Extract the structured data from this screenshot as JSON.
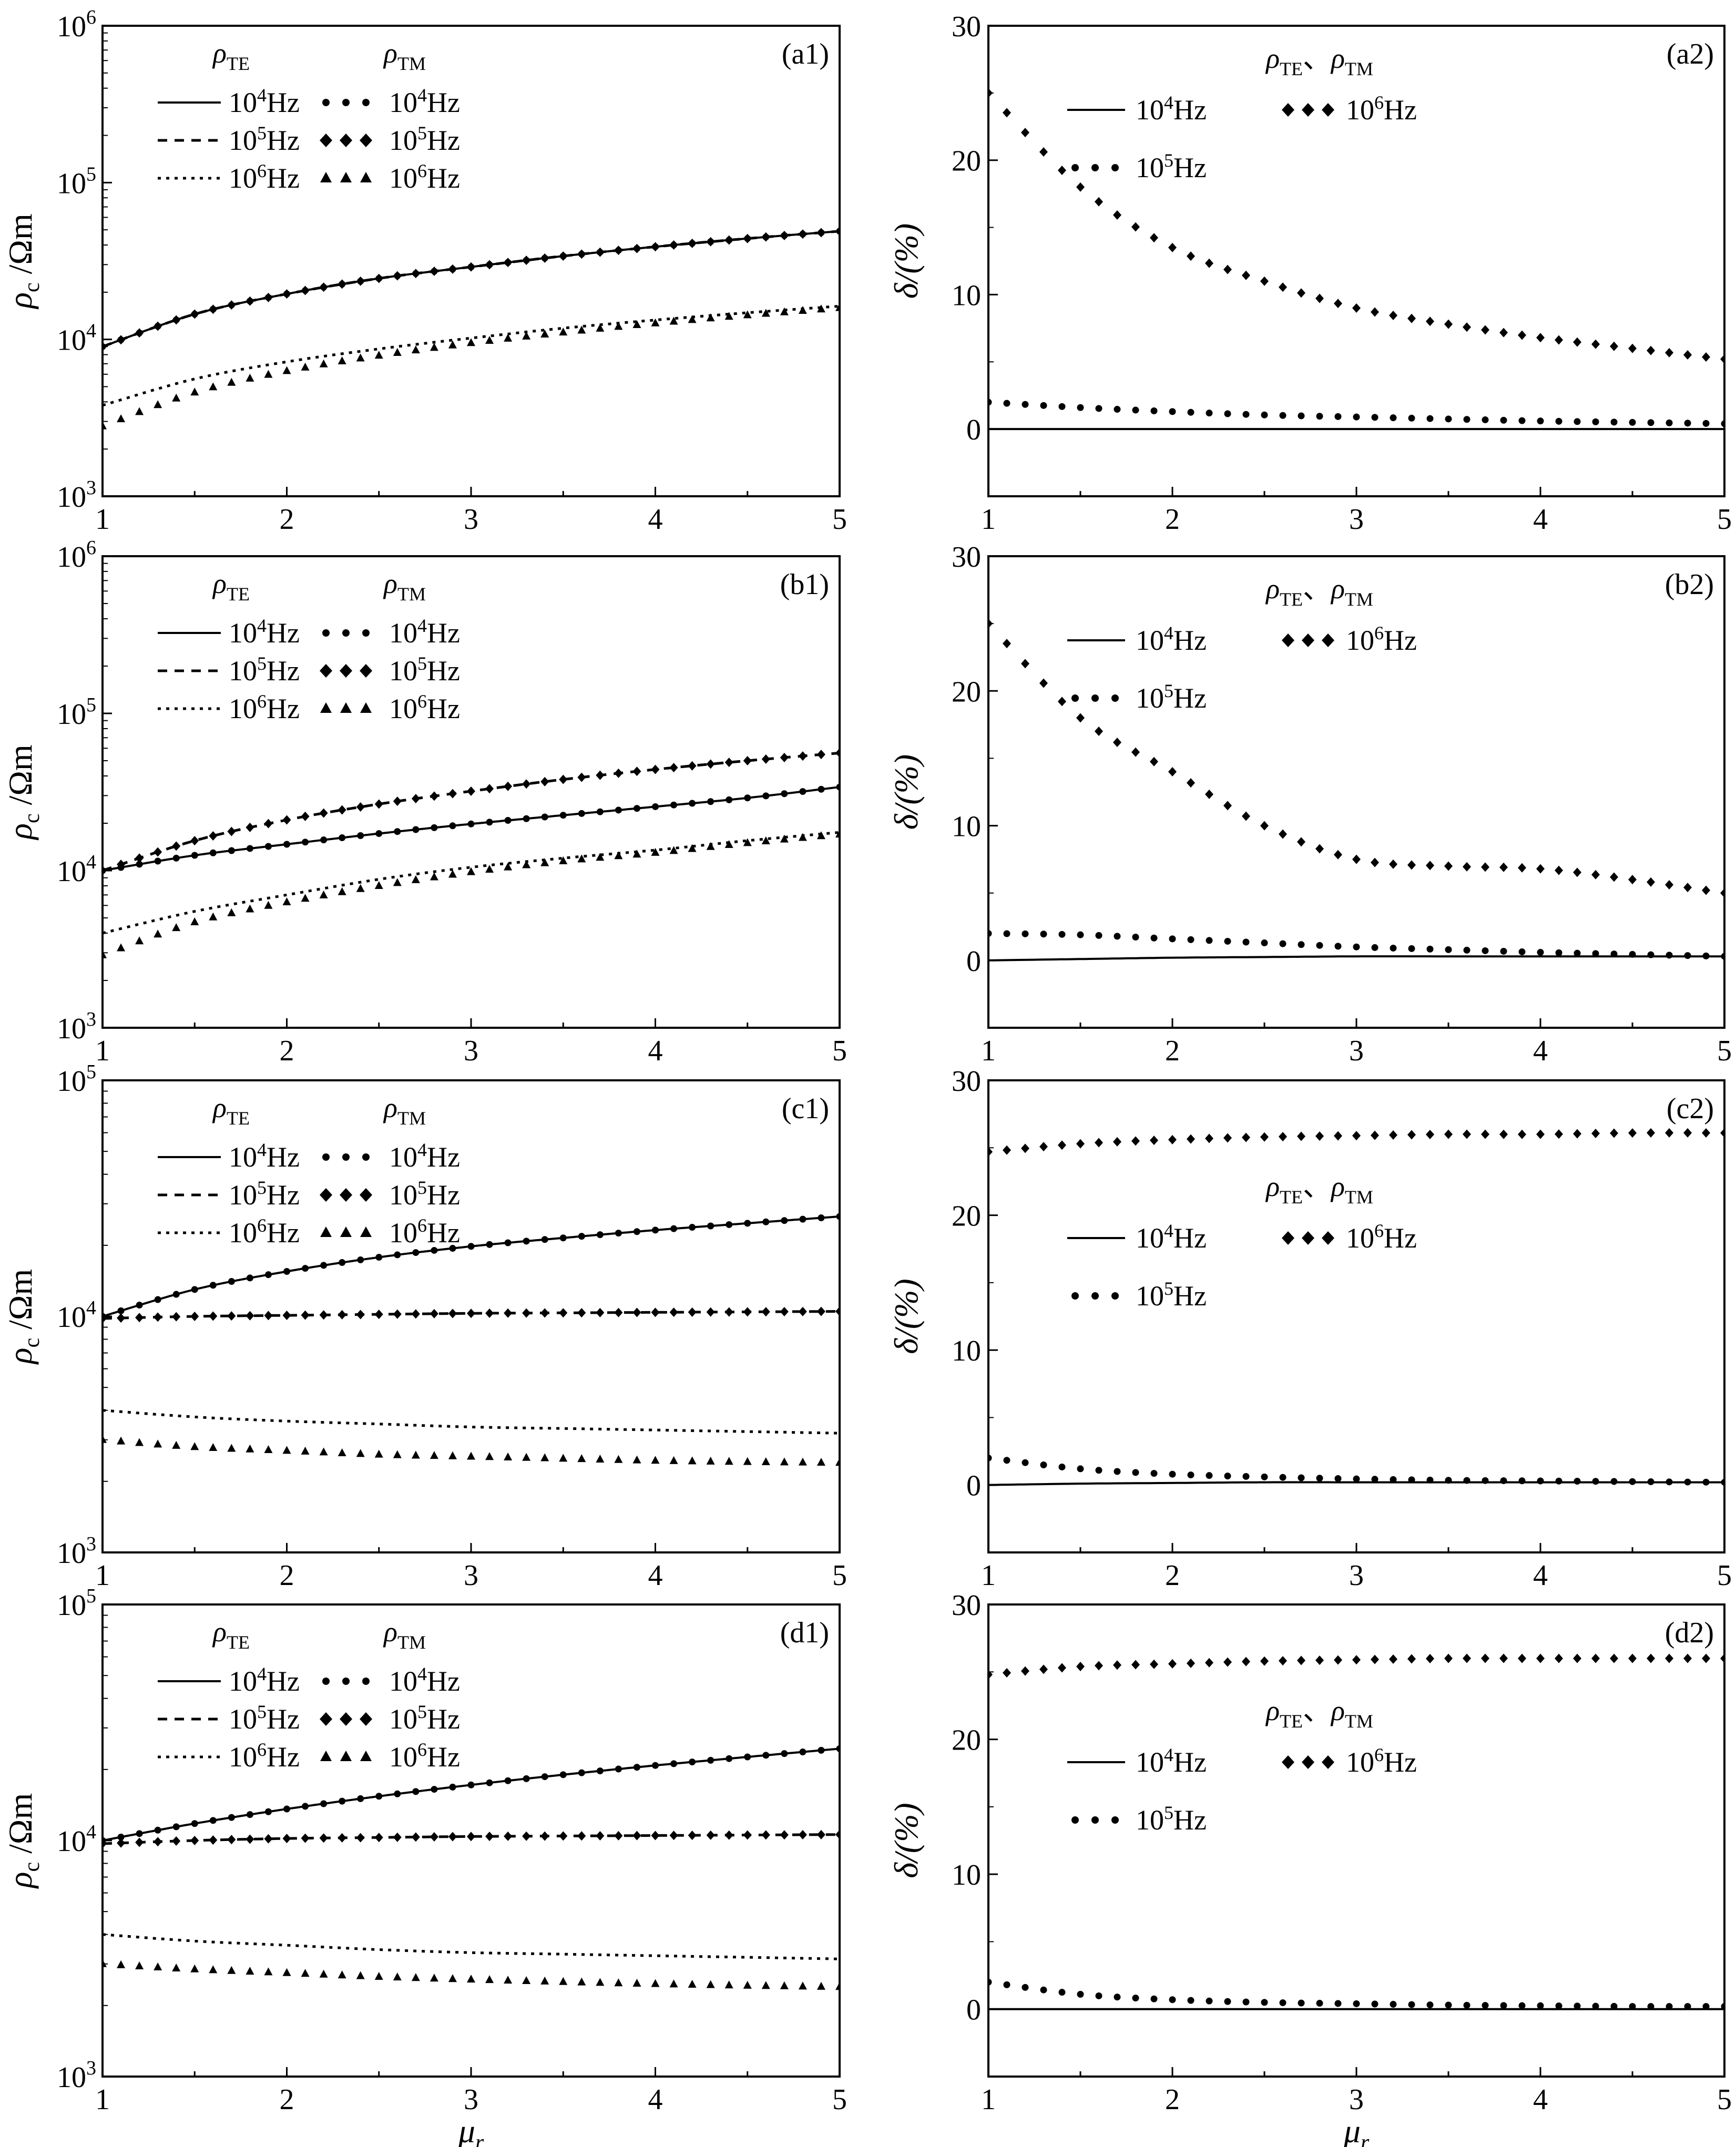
{
  "figure": {
    "x_axis_label": "μ",
    "x_axis_label_sub": "r",
    "left_y_label": "ρ",
    "left_y_label_sub": "c",
    "left_y_label_unit": " /Ωm",
    "right_y_label": "δ/(%)",
    "legend_head_te": "ρ",
    "legend_head_te_sub": "TE",
    "legend_head_tm": "ρ",
    "legend_head_tm_sub": "TM",
    "legend_head_combined_sep": "、",
    "freq_labels": [
      "10⁴Hz",
      "10⁵Hz",
      "10⁶Hz"
    ]
  },
  "chart_data": [
    {
      "id": "a1",
      "panel_label": "(a1)",
      "type": "line",
      "y_scale": "log",
      "xlim": [
        1,
        5
      ],
      "ylim": [
        1000,
        1000000
      ],
      "xticks": [
        "1",
        "2",
        "3",
        "4",
        "5"
      ],
      "yticks": [
        {
          "base": "10",
          "exp": "3"
        },
        {
          "base": "10",
          "exp": "4"
        },
        {
          "base": "10",
          "exp": "5"
        },
        {
          "base": "10",
          "exp": "6"
        }
      ],
      "x": [
        1,
        1.5,
        2,
        2.5,
        3,
        3.5,
        4,
        4.5,
        5
      ],
      "series": [
        {
          "group": "TE",
          "freq": "10⁴Hz",
          "values": [
            9000,
            14500,
            19500,
            24500,
            29000,
            34000,
            39000,
            44000,
            49000
          ]
        },
        {
          "group": "TE",
          "freq": "10⁵Hz",
          "values": [
            9000,
            14500,
            19500,
            24500,
            29000,
            34000,
            39000,
            44000,
            49000
          ]
        },
        {
          "group": "TE",
          "freq": "10⁶Hz",
          "values": [
            3800,
            5600,
            7200,
            8700,
            10200,
            11800,
            13300,
            14800,
            16300
          ]
        },
        {
          "group": "TM",
          "freq": "10⁴Hz",
          "values": [
            9000,
            14500,
            19500,
            24500,
            29000,
            34000,
            39000,
            44000,
            49000
          ]
        },
        {
          "group": "TM",
          "freq": "10⁵Hz",
          "values": [
            9000,
            14500,
            19500,
            24500,
            29000,
            34000,
            39000,
            44000,
            49000
          ]
        },
        {
          "group": "TM",
          "freq": "10⁶Hz",
          "values": [
            2800,
            4600,
            6300,
            7900,
            9500,
            11100,
            12700,
            14300,
            15900
          ]
        }
      ]
    },
    {
      "id": "a2",
      "panel_label": "(a2)",
      "type": "line",
      "y_scale": "linear",
      "xlim": [
        1,
        5
      ],
      "ylim": [
        -5,
        30
      ],
      "xticks": [
        "1",
        "2",
        "3",
        "4",
        "5"
      ],
      "yticks": [
        "0",
        "10",
        "20",
        "30"
      ],
      "x": [
        1,
        1.5,
        2,
        2.5,
        3,
        3.5,
        4,
        4.5,
        5
      ],
      "series": [
        {
          "freq": "10⁴Hz",
          "values": [
            0,
            0,
            0,
            0,
            0,
            0,
            0,
            0,
            0
          ]
        },
        {
          "freq": "10⁵Hz",
          "values": [
            2,
            1.6,
            1.3,
            1.05,
            0.9,
            0.75,
            0.6,
            0.5,
            0.4
          ]
        },
        {
          "freq": "10⁶Hz",
          "values": [
            25,
            18,
            13.5,
            11,
            9,
            7.8,
            6.8,
            6,
            5.2
          ]
        }
      ]
    },
    {
      "id": "b1",
      "panel_label": "(b1)",
      "type": "line",
      "y_scale": "log",
      "xlim": [
        1,
        5
      ],
      "ylim": [
        1000,
        1000000
      ],
      "xticks": [
        "1",
        "2",
        "3",
        "4",
        "5"
      ],
      "yticks": [
        {
          "base": "10",
          "exp": "3"
        },
        {
          "base": "10",
          "exp": "4"
        },
        {
          "base": "10",
          "exp": "5"
        },
        {
          "base": "10",
          "exp": "6"
        }
      ],
      "x": [
        1,
        1.5,
        2,
        2.5,
        3,
        3.5,
        4,
        4.5,
        5
      ],
      "series": [
        {
          "group": "TE",
          "freq": "10⁴Hz",
          "values": [
            10000,
            12500,
            14700,
            17200,
            19800,
            22500,
            25500,
            29000,
            34000
          ]
        },
        {
          "group": "TE",
          "freq": "10⁵Hz",
          "values": [
            10000,
            15500,
            21000,
            26500,
            32000,
            38000,
            44000,
            50000,
            56000
          ]
        },
        {
          "group": "TE",
          "freq": "10⁶Hz",
          "values": [
            4000,
            5500,
            7000,
            8800,
            10500,
            12000,
            13500,
            15500,
            17500
          ]
        },
        {
          "group": "TM",
          "freq": "10⁴Hz",
          "values": [
            10000,
            12500,
            14700,
            17200,
            19800,
            22500,
            25500,
            29000,
            34000
          ]
        },
        {
          "group": "TM",
          "freq": "10⁵Hz",
          "values": [
            10000,
            15500,
            21000,
            26500,
            32000,
            38000,
            44000,
            50000,
            56000
          ]
        },
        {
          "group": "TM",
          "freq": "10⁶Hz",
          "values": [
            2900,
            4700,
            6300,
            8000,
            9800,
            11500,
            13000,
            15000,
            17000
          ]
        }
      ]
    },
    {
      "id": "b2",
      "panel_label": "(b2)",
      "type": "line",
      "y_scale": "linear",
      "xlim": [
        1,
        5
      ],
      "ylim": [
        -5,
        30
      ],
      "xticks": [
        "1",
        "2",
        "3",
        "4",
        "5"
      ],
      "yticks": [
        "0",
        "10",
        "20",
        "30"
      ],
      "x": [
        1,
        1.5,
        2,
        2.5,
        3,
        3.5,
        4,
        4.5,
        5
      ],
      "series": [
        {
          "freq": "10⁴Hz",
          "values": [
            0,
            0.1,
            0.2,
            0.25,
            0.3,
            0.3,
            0.3,
            0.3,
            0.3
          ]
        },
        {
          "freq": "10⁵Hz",
          "values": [
            2,
            1.9,
            1.6,
            1.3,
            1.0,
            0.8,
            0.6,
            0.45,
            0.3
          ]
        },
        {
          "freq": "10⁶Hz",
          "values": [
            25,
            18,
            14,
            10,
            7.5,
            7,
            6.8,
            6,
            5
          ]
        }
      ]
    },
    {
      "id": "c1",
      "panel_label": "(c1)",
      "type": "line",
      "y_scale": "log",
      "xlim": [
        1,
        5
      ],
      "ylim": [
        1000,
        100000
      ],
      "xticks": [
        "1",
        "2",
        "3",
        "4",
        "5"
      ],
      "yticks": [
        {
          "base": "10",
          "exp": "3"
        },
        {
          "base": "10",
          "exp": "4"
        },
        {
          "base": "10",
          "exp": "5"
        }
      ],
      "x": [
        1,
        1.5,
        2,
        2.5,
        3,
        3.5,
        4,
        4.5,
        5
      ],
      "series": [
        {
          "group": "TE",
          "freq": "10⁴Hz",
          "values": [
            10000,
            13000,
            15500,
            17800,
            19800,
            21500,
            23200,
            24800,
            26500
          ]
        },
        {
          "group": "TE",
          "freq": "10⁵Hz",
          "values": [
            9800,
            10000,
            10100,
            10200,
            10300,
            10350,
            10400,
            10450,
            10500
          ]
        },
        {
          "group": "TE",
          "freq": "10⁶Hz",
          "values": [
            4000,
            3750,
            3600,
            3500,
            3400,
            3350,
            3300,
            3250,
            3200
          ]
        },
        {
          "group": "TM",
          "freq": "10⁴Hz",
          "values": [
            10000,
            13000,
            15500,
            17800,
            19800,
            21500,
            23200,
            24800,
            26500
          ]
        },
        {
          "group": "TM",
          "freq": "10⁵Hz",
          "values": [
            9800,
            10000,
            10100,
            10200,
            10300,
            10350,
            10400,
            10450,
            10500
          ]
        },
        {
          "group": "TM",
          "freq": "10⁶Hz",
          "values": [
            3000,
            2800,
            2700,
            2600,
            2550,
            2500,
            2450,
            2420,
            2400
          ]
        }
      ]
    },
    {
      "id": "c2",
      "panel_label": "(c2)",
      "type": "line",
      "y_scale": "linear",
      "xlim": [
        1,
        5
      ],
      "ylim": [
        -5,
        30
      ],
      "xticks": [
        "1",
        "2",
        "3",
        "4",
        "5"
      ],
      "yticks": [
        "0",
        "10",
        "20",
        "30"
      ],
      "x": [
        1,
        1.5,
        2,
        2.5,
        3,
        3.5,
        4,
        4.5,
        5
      ],
      "series": [
        {
          "freq": "10⁴Hz",
          "values": [
            0,
            0.1,
            0.15,
            0.2,
            0.2,
            0.2,
            0.2,
            0.2,
            0.2
          ]
        },
        {
          "freq": "10⁵Hz",
          "values": [
            2,
            1.2,
            0.8,
            0.6,
            0.45,
            0.35,
            0.3,
            0.25,
            0.2
          ]
        },
        {
          "freq": "10⁶Hz",
          "values": [
            24.7,
            25.3,
            25.6,
            25.8,
            25.9,
            26.0,
            26.0,
            26.1,
            26.1
          ]
        }
      ]
    },
    {
      "id": "d1",
      "panel_label": "(d1)",
      "type": "line",
      "y_scale": "log",
      "xlim": [
        1,
        5
      ],
      "ylim": [
        1000,
        100000
      ],
      "xticks": [
        "1",
        "2",
        "3",
        "4",
        "5"
      ],
      "yticks": [
        {
          "base": "10",
          "exp": "3"
        },
        {
          "base": "10",
          "exp": "4"
        },
        {
          "base": "10",
          "exp": "5"
        }
      ],
      "x": [
        1,
        1.5,
        2,
        2.5,
        3,
        3.5,
        4,
        4.5,
        5
      ],
      "series": [
        {
          "group": "TE",
          "freq": "10⁴Hz",
          "values": [
            10000,
            11800,
            13600,
            15400,
            17200,
            19000,
            20800,
            22600,
            24500
          ]
        },
        {
          "group": "TE",
          "freq": "10⁵Hz",
          "values": [
            9700,
            10000,
            10200,
            10300,
            10400,
            10450,
            10500,
            10550,
            10600
          ]
        },
        {
          "group": "TE",
          "freq": "10⁶Hz",
          "values": [
            4000,
            3750,
            3600,
            3450,
            3350,
            3300,
            3250,
            3200,
            3150
          ]
        },
        {
          "group": "TM",
          "freq": "10⁴Hz",
          "values": [
            10000,
            11800,
            13600,
            15400,
            17200,
            19000,
            20800,
            22600,
            24500
          ]
        },
        {
          "group": "TM",
          "freq": "10⁵Hz",
          "values": [
            9700,
            10000,
            10200,
            10300,
            10400,
            10450,
            10500,
            10550,
            10600
          ]
        },
        {
          "group": "TM",
          "freq": "10⁶Hz",
          "values": [
            3000,
            2850,
            2750,
            2650,
            2580,
            2520,
            2470,
            2430,
            2400
          ]
        }
      ]
    },
    {
      "id": "d2",
      "panel_label": "(d2)",
      "type": "line",
      "y_scale": "linear",
      "xlim": [
        1,
        5
      ],
      "ylim": [
        -5,
        30
      ],
      "xticks": [
        "1",
        "2",
        "3",
        "4",
        "5"
      ],
      "yticks": [
        "0",
        "10",
        "20",
        "30"
      ],
      "x": [
        1,
        1.5,
        2,
        2.5,
        3,
        3.5,
        4,
        4.5,
        5
      ],
      "series": [
        {
          "freq": "10⁴Hz",
          "values": [
            0,
            0,
            0,
            0,
            0,
            0,
            0,
            0,
            0
          ]
        },
        {
          "freq": "10⁵Hz",
          "values": [
            2,
            1.1,
            0.7,
            0.5,
            0.4,
            0.3,
            0.25,
            0.2,
            0.2
          ]
        },
        {
          "freq": "10⁶Hz",
          "values": [
            24.8,
            25.4,
            25.6,
            25.8,
            25.9,
            26.0,
            26.0,
            26.0,
            26.0
          ]
        }
      ]
    }
  ]
}
